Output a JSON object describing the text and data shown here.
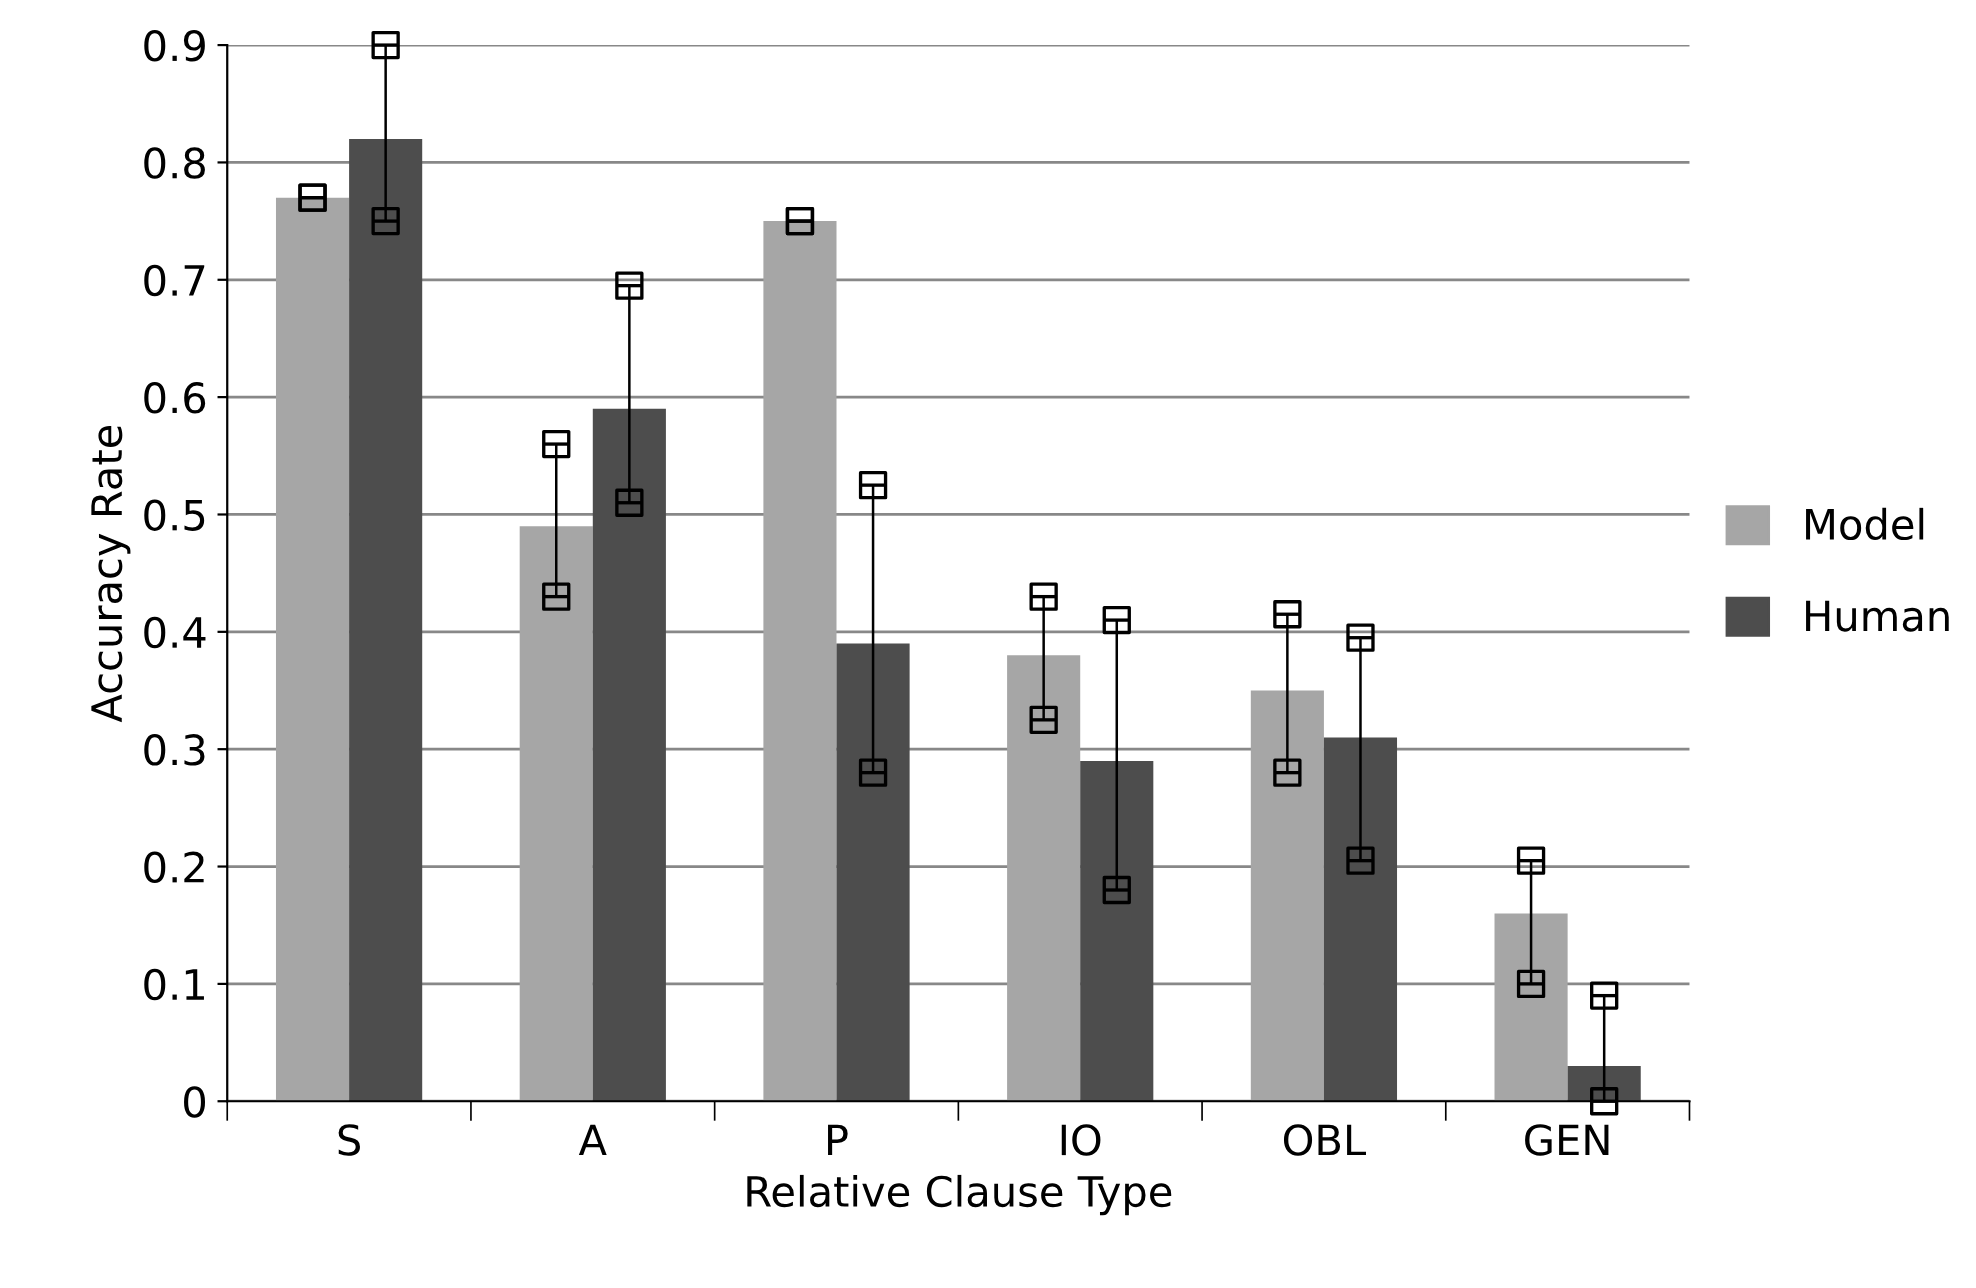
{
  "chart_data": {
    "type": "bar",
    "xlabel": "Relative Clause Type",
    "ylabel": "Accuracy Rate",
    "categories": [
      "S",
      "A",
      "P",
      "IO",
      "OBL",
      "GEN"
    ],
    "series": [
      {
        "name": "Model",
        "color": "#a6a6a6",
        "values": [
          0.77,
          0.49,
          0.75,
          0.38,
          0.35,
          0.16
        ],
        "errors": [
          [
            0.77,
            0.77
          ],
          [
            0.43,
            0.56
          ],
          [
            0.75,
            0.75
          ],
          [
            0.325,
            0.43
          ],
          [
            0.28,
            0.415
          ],
          [
            0.1,
            0.205
          ]
        ]
      },
      {
        "name": "Human",
        "color": "#4d4d4d",
        "values": [
          0.82,
          0.59,
          0.39,
          0.29,
          0.31,
          0.03
        ],
        "errors": [
          [
            0.75,
            0.9
          ],
          [
            0.51,
            0.695
          ],
          [
            0.28,
            0.525
          ],
          [
            0.18,
            0.41
          ],
          [
            0.205,
            0.395
          ],
          [
            0.0,
            0.09
          ]
        ]
      }
    ],
    "marker": "square",
    "ylim": [
      0,
      0.9
    ],
    "yticks": [
      0,
      0.1,
      0.2,
      0.3,
      0.4,
      0.5,
      0.6,
      0.7,
      0.8,
      0.9
    ],
    "grid": "y",
    "legend": "right"
  }
}
